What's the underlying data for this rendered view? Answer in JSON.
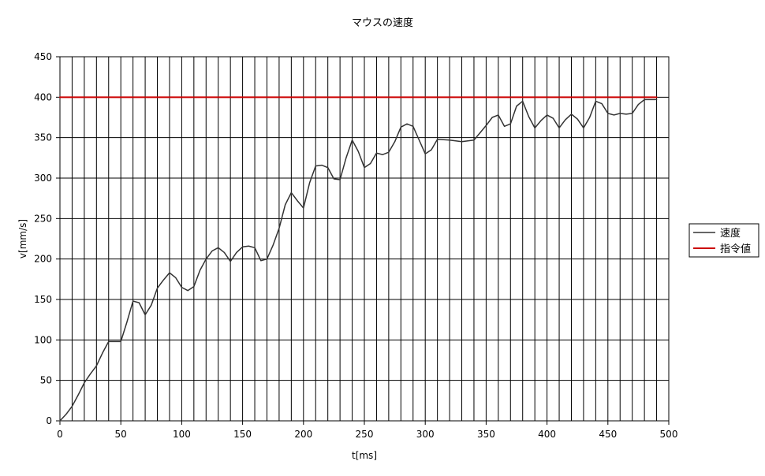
{
  "chart_data": {
    "type": "line",
    "title": "マウスの速度",
    "xlabel": "t[ms]",
    "ylabel": "v[mm/s]",
    "xlim": [
      0,
      500
    ],
    "ylim": [
      0,
      450
    ],
    "x_ticks": [
      0,
      50,
      100,
      150,
      200,
      250,
      300,
      350,
      400,
      450,
      500
    ],
    "y_ticks": [
      0,
      50,
      100,
      150,
      200,
      250,
      300,
      350,
      400,
      450
    ],
    "x_tick_labels": [
      "0",
      "50",
      "100",
      "150",
      "200",
      "250",
      "300",
      "350",
      "400",
      "450",
      "500"
    ],
    "y_tick_labels": [
      "0",
      "50",
      "100",
      "150",
      "200",
      "250",
      "300",
      "350",
      "400",
      "450"
    ],
    "grid": true,
    "grid_x_step": 10,
    "grid_y_step": 50,
    "legend_position": "right",
    "series": [
      {
        "name": "速度",
        "color": "#333333",
        "points": [
          [
            0,
            0
          ],
          [
            5,
            8
          ],
          [
            10,
            18
          ],
          [
            15,
            32
          ],
          [
            20,
            47
          ],
          [
            25,
            58
          ],
          [
            30,
            68
          ],
          [
            35,
            84
          ],
          [
            40,
            98
          ],
          [
            45,
            98
          ],
          [
            50,
            98
          ],
          [
            55,
            122
          ],
          [
            60,
            148
          ],
          [
            65,
            146
          ],
          [
            70,
            131
          ],
          [
            75,
            143
          ],
          [
            80,
            164
          ],
          [
            85,
            174
          ],
          [
            90,
            183
          ],
          [
            95,
            177
          ],
          [
            100,
            165
          ],
          [
            105,
            161
          ],
          [
            110,
            166
          ],
          [
            115,
            186
          ],
          [
            120,
            200
          ],
          [
            125,
            210
          ],
          [
            130,
            214
          ],
          [
            135,
            208
          ],
          [
            140,
            197
          ],
          [
            145,
            208
          ],
          [
            150,
            215
          ],
          [
            155,
            216
          ],
          [
            160,
            214
          ],
          [
            165,
            198
          ],
          [
            170,
            200
          ],
          [
            175,
            217
          ],
          [
            180,
            238
          ],
          [
            185,
            267
          ],
          [
            190,
            282
          ],
          [
            195,
            272
          ],
          [
            200,
            263
          ],
          [
            205,
            294
          ],
          [
            210,
            315
          ],
          [
            215,
            316
          ],
          [
            220,
            313
          ],
          [
            225,
            299
          ],
          [
            230,
            298
          ],
          [
            235,
            325
          ],
          [
            240,
            347
          ],
          [
            245,
            333
          ],
          [
            250,
            313
          ],
          [
            255,
            318
          ],
          [
            260,
            331
          ],
          [
            265,
            329
          ],
          [
            270,
            332
          ],
          [
            275,
            345
          ],
          [
            280,
            363
          ],
          [
            285,
            367
          ],
          [
            290,
            364
          ],
          [
            295,
            347
          ],
          [
            300,
            330
          ],
          [
            305,
            335
          ],
          [
            310,
            348
          ],
          [
            320,
            347
          ],
          [
            330,
            345
          ],
          [
            340,
            347
          ],
          [
            345,
            356
          ],
          [
            350,
            365
          ],
          [
            355,
            375
          ],
          [
            360,
            378
          ],
          [
            365,
            364
          ],
          [
            370,
            367
          ],
          [
            375,
            389
          ],
          [
            380,
            395
          ],
          [
            385,
            376
          ],
          [
            390,
            362
          ],
          [
            395,
            371
          ],
          [
            400,
            378
          ],
          [
            405,
            374
          ],
          [
            410,
            362
          ],
          [
            415,
            372
          ],
          [
            420,
            379
          ],
          [
            425,
            373
          ],
          [
            430,
            362
          ],
          [
            435,
            375
          ],
          [
            440,
            395
          ],
          [
            445,
            392
          ],
          [
            450,
            380
          ],
          [
            455,
            378
          ],
          [
            460,
            380
          ],
          [
            465,
            379
          ],
          [
            470,
            380
          ],
          [
            475,
            391
          ],
          [
            480,
            397
          ],
          [
            485,
            397
          ],
          [
            490,
            397
          ]
        ]
      },
      {
        "name": "指令値",
        "color": "#cc0000",
        "points": [
          [
            0,
            400
          ],
          [
            490,
            400
          ]
        ]
      }
    ]
  }
}
